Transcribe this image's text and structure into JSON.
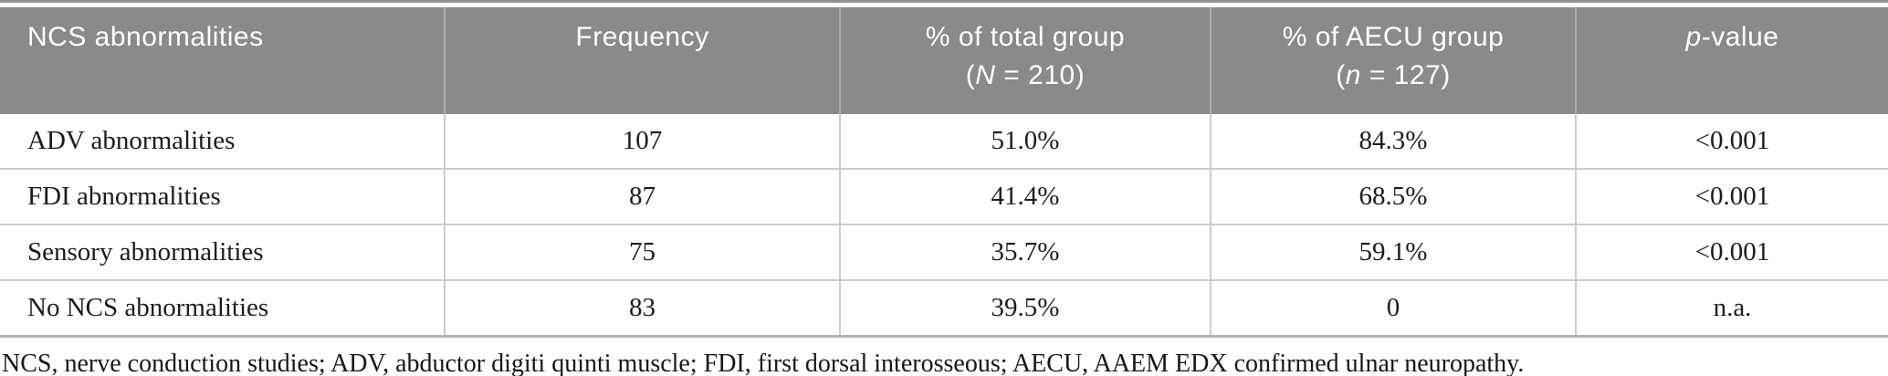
{
  "table": {
    "header": {
      "col1": "NCS abnormalities",
      "col2": "Frequency",
      "col3_line1": "% of total group",
      "col3_line2_segments": [
        {
          "text": "(",
          "italic": false
        },
        {
          "text": "N",
          "italic": true
        },
        {
          "text": " = 210)",
          "italic": false
        }
      ],
      "col4_line1": "% of AECU group",
      "col4_line2_segments": [
        {
          "text": "(",
          "italic": false
        },
        {
          "text": "n",
          "italic": true
        },
        {
          "text": " = 127)",
          "italic": false
        }
      ],
      "col5_segments": [
        {
          "text": "p",
          "italic": true
        },
        {
          "text": "-value",
          "italic": false
        }
      ]
    },
    "rows": [
      {
        "cells": [
          "ADV abnormalities",
          "107",
          "51.0%",
          "84.3%",
          "<0.001"
        ]
      },
      {
        "cells": [
          "FDI abnormalities",
          "87",
          "41.4%",
          "68.5%",
          "<0.001"
        ]
      },
      {
        "cells": [
          "Sensory abnormalities",
          "75",
          "35.7%",
          "59.1%",
          "<0.001"
        ]
      },
      {
        "cells": [
          "No NCS abnormalities",
          "83",
          "39.5%",
          "0",
          "n.a."
        ]
      }
    ]
  },
  "footnote": "NCS, nerve conduction studies; ADV, abductor digiti quinti muscle; FDI, first dorsal interosseous; AECU, AAEM EDX confirmed ulnar neuropathy.",
  "colors": {
    "header_bg": "#8a8a8a",
    "header_text": "#ffffff",
    "body_text": "#1c1c1c",
    "row_line": "#cccccc",
    "bottom_line": "#b3b3b3",
    "top_rule": "#909090"
  }
}
